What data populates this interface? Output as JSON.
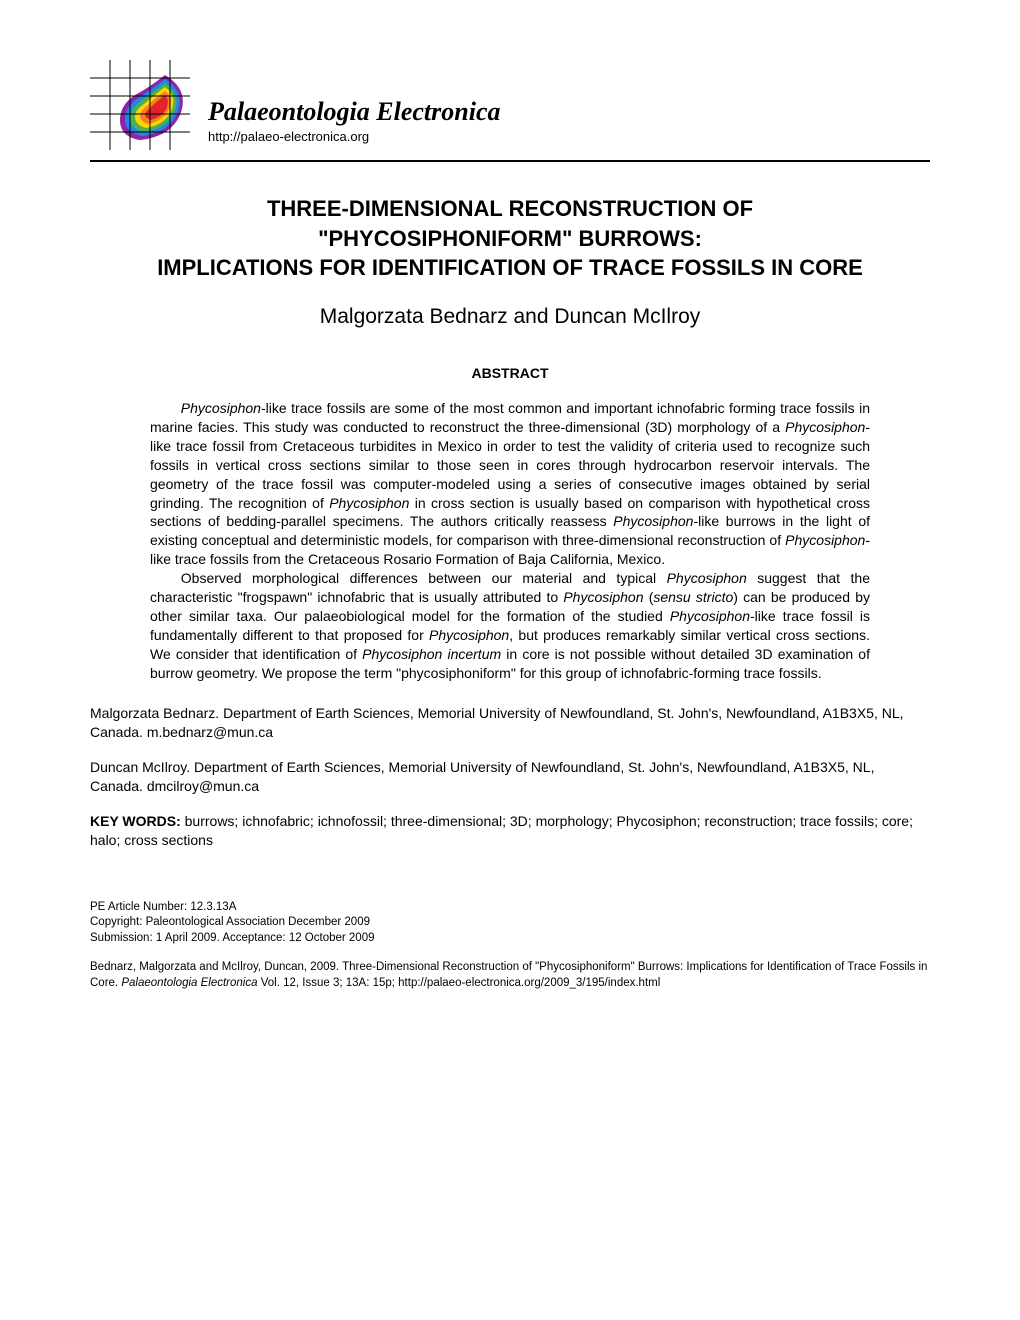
{
  "journal": {
    "name": "Palaeontologia Electronica",
    "url": "http://palaeo-electronica.org"
  },
  "logo": {
    "grid_color": "#000000",
    "bg": "#ffffff",
    "stripes": [
      "#e2232a",
      "#f58220",
      "#ffd400",
      "#4caf50",
      "#1e88e5",
      "#8e24aa"
    ]
  },
  "title_lines": [
    "THREE-DIMENSIONAL RECONSTRUCTION OF",
    "\"PHYCOSIPHONIFORM\" BURROWS:",
    "IMPLICATIONS FOR IDENTIFICATION OF TRACE FOSSILS IN CORE"
  ],
  "authors": "Malgorzata Bednarz and Duncan McIlroy",
  "abstract_heading": "ABSTRACT",
  "abstract_html_p1": "<span class=\"italic\">Phycosiphon</span>-like trace fossils are some of the most common and important ichnofabric forming trace fossils in marine facies. This study was conducted to reconstruct the three-dimensional (3D) morphology of a <span class=\"italic\">Phycosiphon</span>-like trace fossil from Cretaceous turbidites in Mexico in order to test the validity of criteria used to recognize such fossils in vertical cross sections similar to those seen in cores through hydrocarbon reservoir intervals. The geometry of the trace fossil was computer-modeled using a series of consecutive images obtained by serial grinding. The recognition of <span class=\"italic\">Phycosiphon</span> in cross section is usually based on comparison with hypothetical cross sections of bedding-parallel specimens. The authors critically reassess <span class=\"italic\">Phycosiphon</span>-like burrows in the light of existing conceptual and deterministic models, for comparison with three-dimensional reconstruction of <span class=\"italic\">Phycosiphon</span>-like trace fossils from the Cretaceous Rosario Formation of Baja California, Mexico.",
  "abstract_html_p2": "Observed morphological differences between our material and typical <span class=\"italic\">Phycosiphon</span> suggest that the characteristic \"frogspawn\" ichnofabric that is usually attributed to <span class=\"italic\">Phycosiphon</span> (<span class=\"italic\">sensu stricto</span>) can be produced by other similar taxa. Our palaeobiological model for the formation of the studied <span class=\"italic\">Phycosiphon</span>-like trace fossil is fundamentally different to that proposed for <span class=\"italic\">Phycosiphon</span>, but produces remarkably similar vertical cross sections. We consider that identification of <span class=\"italic\">Phycosiphon incertum</span> in core is not possible without detailed 3D examination of burrow geometry. We propose the term \"phycosiphoniform\" for this group of ichnofabric-forming trace fossils.",
  "affiliations": [
    "Malgorzata Bednarz. Department of Earth Sciences, Memorial University of Newfoundland, St. John's, Newfoundland, A1B3X5, NL, Canada. m.bednarz@mun.ca",
    "Duncan McIlroy. Department of Earth Sciences, Memorial University of Newfoundland, St. John's, Newfoundland, A1B3X5, NL, Canada. dmcilroy@mun.ca"
  ],
  "keywords_label": "KEY WORDS:",
  "keywords_text": " burrows; ichnofabric; ichnofossil; three-dimensional; 3D; morphology; Phycosiphon; reconstruction; trace fossils; core; halo; cross sections",
  "footer": {
    "article_number": "PE Article Number: 12.3.13A",
    "copyright": "Copyright: Paleontological Association December 2009",
    "submission": "Submission: 1 April 2009. Acceptance: 12 October 2009"
  },
  "citation_html": "Bednarz, Malgorzata and McIlroy, Duncan, 2009. Three-Dimensional Reconstruction of \"Phycosiphoniform\" Burrows: Implications for Identification of Trace Fossils in Core. <span class=\"italic\">Palaeontologia Electronica</span> Vol. 12, Issue 3; 13A: 15p; http://palaeo-electronica.org/2009_3/195/index.html"
}
